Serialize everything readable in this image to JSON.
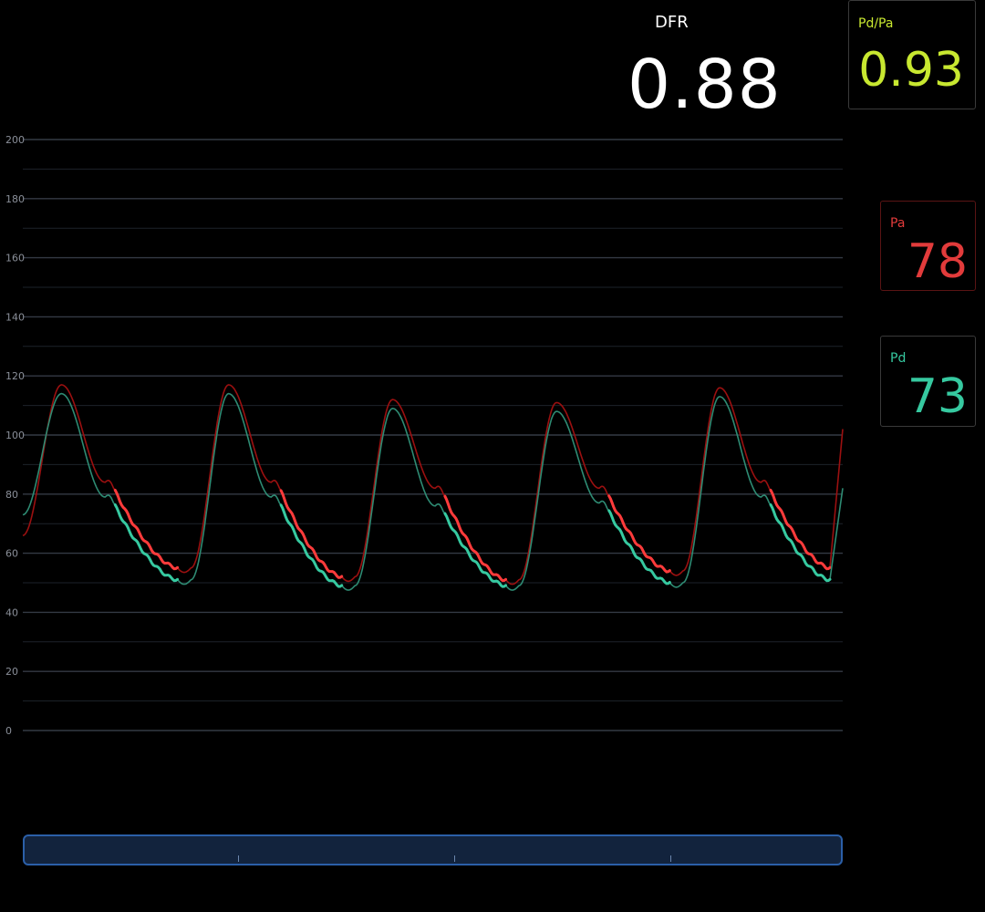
{
  "dfr": {
    "label": "DFR",
    "value": "0.88"
  },
  "pd_pa": {
    "label": "Pd/Pa",
    "value": "0.93",
    "color": "#c8e830"
  },
  "pa": {
    "label": "Pa",
    "value": "78",
    "color": "#e23b3b"
  },
  "pd": {
    "label": "Pd",
    "value": "73",
    "color": "#36c9a0"
  },
  "chart_data": {
    "type": "line",
    "ylim": [
      0,
      200
    ],
    "xlim": [
      0,
      100
    ],
    "y_ticks": [
      "200",
      "180",
      "160",
      "140",
      "120",
      "100",
      "80",
      "60",
      "40",
      "20",
      "0"
    ],
    "grid": true,
    "series": [
      {
        "name": "Pa",
        "color": "#9b1010",
        "highlight_color": "#ff3b3b",
        "beats": [
          {
            "start": 0.0,
            "diastolic": 66,
            "systolic": 117,
            "notch": 84,
            "end_value": 55
          },
          {
            "start": 20.5,
            "diastolic": 55,
            "systolic": 117,
            "notch": 84,
            "end_value": 52
          },
          {
            "start": 40.5,
            "diastolic": 52,
            "systolic": 112,
            "notch": 82,
            "end_value": 51
          },
          {
            "start": 60.5,
            "diastolic": 51,
            "systolic": 111,
            "notch": 82,
            "end_value": 54
          },
          {
            "start": 80.5,
            "diastolic": 54,
            "systolic": 116,
            "notch": 84,
            "end_value": 55
          }
        ],
        "final_value": 102
      },
      {
        "name": "Pd",
        "color": "#2e8b73",
        "highlight_color": "#36c9a0",
        "beats": [
          {
            "start": 0.0,
            "diastolic": 73,
            "systolic": 114,
            "notch": 79,
            "end_value": 51
          },
          {
            "start": 20.5,
            "diastolic": 51,
            "systolic": 114,
            "notch": 79,
            "end_value": 49
          },
          {
            "start": 40.5,
            "diastolic": 49,
            "systolic": 109,
            "notch": 76,
            "end_value": 49
          },
          {
            "start": 60.5,
            "diastolic": 49,
            "systolic": 108,
            "notch": 77,
            "end_value": 50
          },
          {
            "start": 80.5,
            "diastolic": 50,
            "systolic": 113,
            "notch": 79,
            "end_value": 51
          }
        ],
        "final_value": 82
      }
    ]
  },
  "scrollbar": {
    "position": 0
  }
}
